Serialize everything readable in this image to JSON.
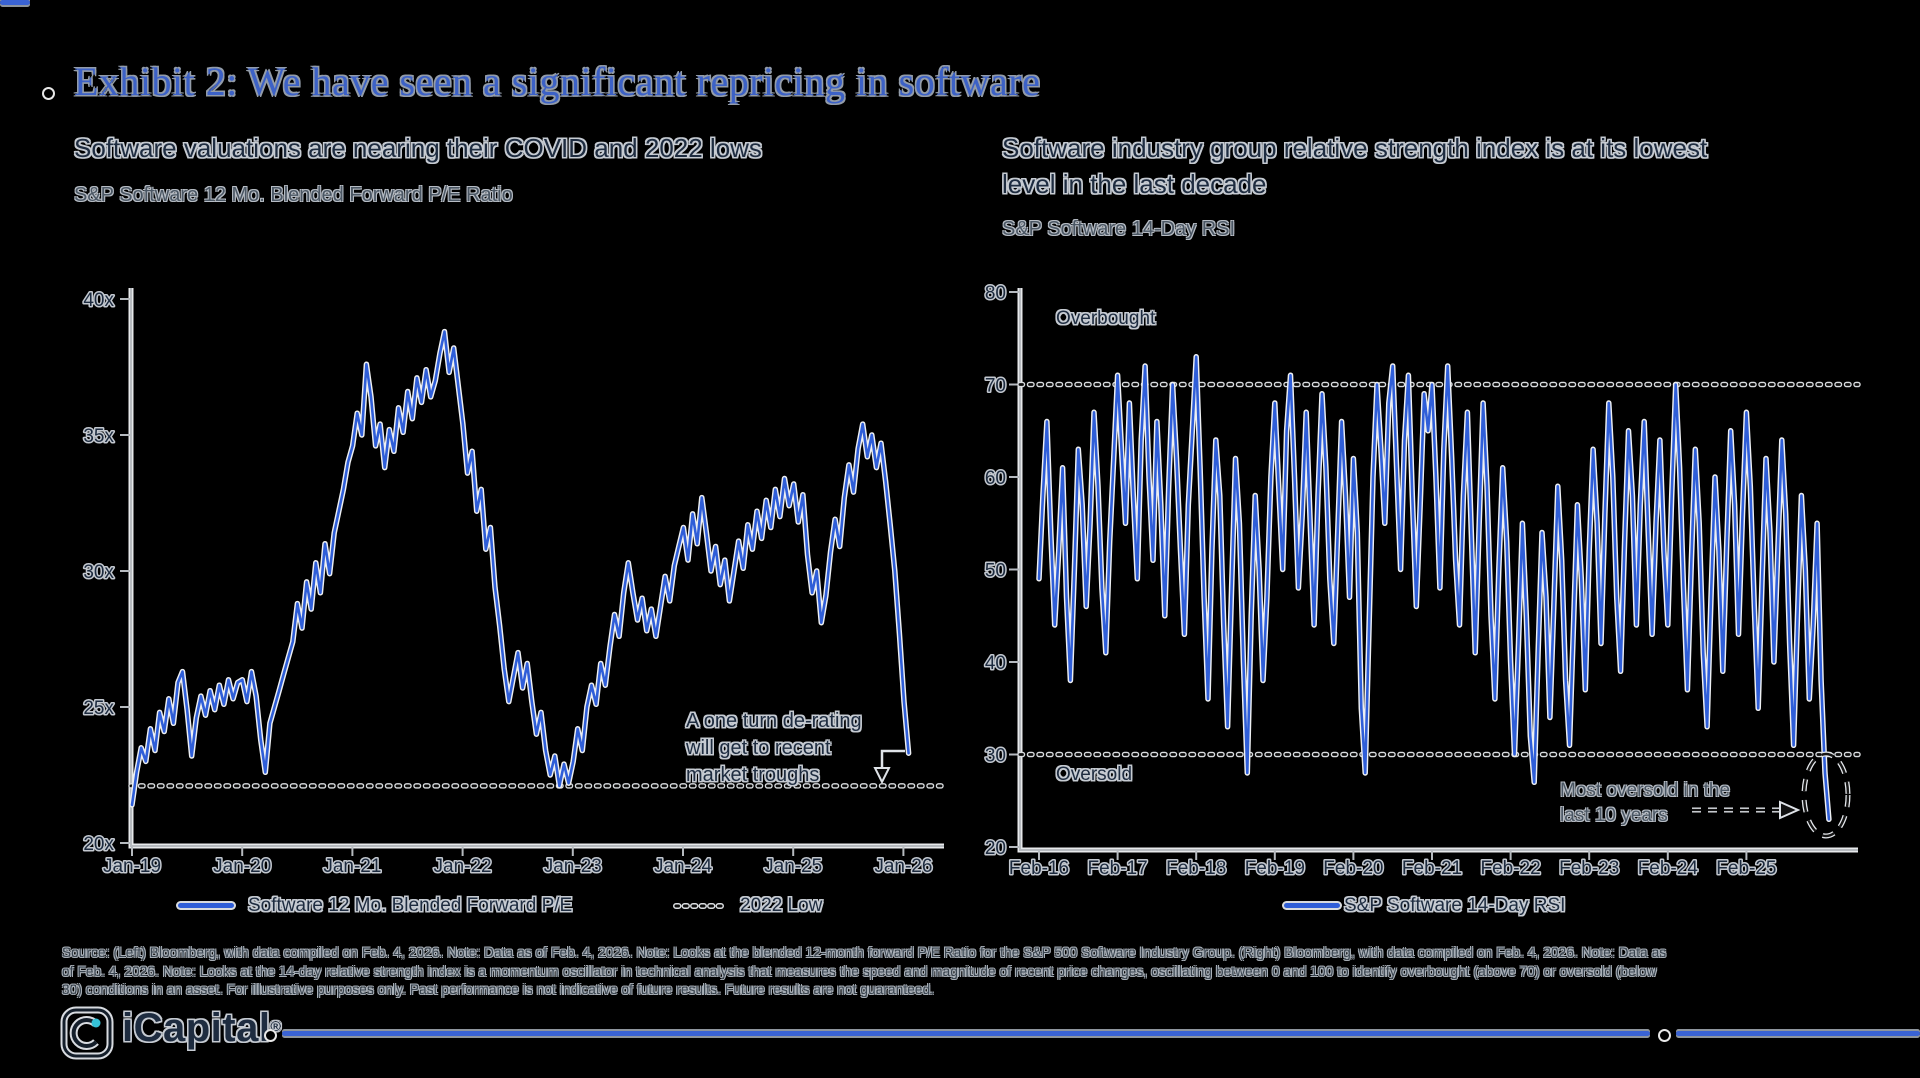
{
  "header": {
    "title": "Exhibit 2: We have seen a significant repricing in software"
  },
  "left_panel": {
    "subtitle": "Software valuations are nearing their COVID and 2022 lows",
    "series_label": "S&P Software 12 Mo. Blended Forward P/E Ratio",
    "annotation": {
      "line1": "A one turn de-rating",
      "line2": "will get to recent",
      "line3": "market troughs"
    },
    "legend": {
      "line_label": "Software 12 Mo. Blended Forward P/E",
      "dotted_label": "2022 Low"
    }
  },
  "right_panel": {
    "subtitle_line1": "Software industry group relative strength index is at its lowest",
    "subtitle_line2": "level in the last decade",
    "series_label": "S&P Software 14-Day RSI",
    "overbought_label": "Overbought",
    "oversold_label": "Oversold",
    "annotation": {
      "line1": "Most oversold in the",
      "line2": "last 10 years"
    },
    "legend": {
      "line_label": "S&P Software 14-Day RSI"
    }
  },
  "footer": {
    "source_lines": [
      "Source: (Left) Bloomberg, with data compiled on Feb. 4, 2026. Note: Data as of Feb. 4, 2026. Note: Looks at the blended 12-month forward P/E Ratio for the S&P 500 Software Industry Group. (Right) Bloomberg, with data compiled on Feb. 4, 2026. Note: Data as",
      "of Feb. 4, 2026. Note: Looks at the 14-day relative strength index is a momentum oscillator in technical analysis that measures the speed and magnitude of recent price changes, oscillating between 0 and 100 to identify overbought (above 70) or oversold (below",
      "30) conditions in an asset. For illustrative purposes only. Past performance is not indicative of future results. Future results are not guaranteed."
    ],
    "logo_text": "iCapital",
    "logo_reg": "®"
  },
  "colors": {
    "background": "#000000",
    "line_blue": "#2f5ed8",
    "title_blue": "#3c61c6",
    "axis_gray": "#b6babf",
    "dotted_dark": "#0a0a0a",
    "halo_light": "#c6cbd2",
    "logo_dot_teal": "#35c2d8"
  },
  "chart_data": [
    {
      "type": "line",
      "name": "pe",
      "title": "Software valuations are nearing their COVID and 2022 lows",
      "subtitle": "S&P Software 12 Mo. Blended Forward P/E Ratio",
      "legend_position": "bottom",
      "grid": false,
      "ylim": [
        20,
        40
      ],
      "ylabel": "",
      "xlabel": "",
      "x_start": 2019.0,
      "x_step": 0.0417,
      "y_ticks": [
        {
          "label": "40x",
          "v": 40
        },
        {
          "label": "35x",
          "v": 35
        },
        {
          "label": "30x",
          "v": 30
        },
        {
          "label": "25x",
          "v": 25
        },
        {
          "label": "20x",
          "v": 20
        }
      ],
      "x_ticks": [
        {
          "label": "Jan-19",
          "t": 2019
        },
        {
          "label": "Jan-20",
          "t": 2020
        },
        {
          "label": "Jan-21",
          "t": 2021
        },
        {
          "label": "Jan-22",
          "t": 2022
        },
        {
          "label": "Jan-23",
          "t": 2023
        },
        {
          "label": "Jan-24",
          "t": 2024
        },
        {
          "label": "Jan-25",
          "t": 2025
        },
        {
          "label": "Jan-26",
          "t": 2026
        }
      ],
      "reference_line": {
        "label": "2022 Low",
        "value": 22.1
      },
      "series": [
        {
          "name": "Software 12 Mo. Blended Forward P/E",
          "values": [
            21.4,
            22.6,
            23.5,
            23.0,
            24.2,
            23.4,
            24.8,
            24.1,
            25.3,
            24.4,
            25.9,
            26.3,
            24.9,
            23.2,
            24.6,
            25.4,
            24.7,
            25.6,
            24.9,
            25.8,
            25.1,
            26.0,
            25.3,
            25.9,
            26.0,
            25.2,
            26.3,
            25.4,
            23.8,
            22.6,
            24.4,
            25.0,
            25.6,
            26.2,
            26.8,
            27.4,
            28.8,
            27.9,
            29.6,
            28.6,
            30.3,
            29.2,
            31.0,
            29.9,
            31.4,
            32.2,
            33.0,
            34.0,
            34.6,
            35.8,
            35.0,
            37.6,
            36.4,
            34.6,
            35.4,
            33.8,
            35.2,
            34.4,
            36.0,
            35.1,
            36.6,
            35.6,
            37.1,
            36.2,
            37.4,
            36.4,
            37.0,
            38.0,
            38.8,
            37.3,
            38.2,
            36.8,
            35.4,
            33.6,
            34.4,
            32.2,
            33.0,
            30.8,
            31.6,
            29.4,
            28.0,
            26.4,
            25.2,
            26.1,
            27.0,
            25.7,
            26.6,
            25.2,
            24.0,
            24.8,
            23.4,
            22.5,
            23.2,
            22.1,
            22.9,
            22.2,
            23.0,
            24.2,
            23.4,
            25.0,
            25.8,
            25.1,
            26.6,
            25.8,
            27.2,
            28.4,
            27.6,
            29.2,
            30.3,
            29.2,
            28.2,
            29.0,
            27.8,
            28.6,
            27.6,
            28.7,
            29.8,
            28.9,
            30.2,
            30.9,
            31.6,
            30.4,
            32.1,
            31.0,
            32.7,
            31.4,
            30.0,
            30.9,
            29.5,
            30.4,
            28.9,
            30.0,
            31.1,
            30.1,
            31.7,
            30.8,
            32.2,
            31.2,
            32.6,
            31.6,
            33.0,
            32.0,
            33.4,
            32.4,
            33.2,
            31.8,
            32.8,
            30.6,
            29.2,
            30.0,
            28.1,
            29.1,
            30.7,
            31.9,
            30.9,
            32.7,
            33.9,
            32.9,
            34.5,
            35.4,
            34.2,
            35.0,
            33.8,
            34.7,
            33.3,
            31.7,
            30.0,
            27.7,
            25.2,
            23.3
          ]
        }
      ]
    },
    {
      "type": "line",
      "name": "rsi",
      "title": "Software industry group relative strength index is at its lowest level in the last decade",
      "subtitle": "S&P Software 14-Day RSI",
      "legend_position": "bottom",
      "grid": false,
      "ylim": [
        20,
        80
      ],
      "ylabel": "",
      "xlabel": "",
      "x_start": 2016.08,
      "x_step": 0.05,
      "y_ticks": [
        {
          "label": "80",
          "v": 80
        },
        {
          "label": "70",
          "v": 70
        },
        {
          "label": "60",
          "v": 60
        },
        {
          "label": "50",
          "v": 50
        },
        {
          "label": "40",
          "v": 40
        },
        {
          "label": "30",
          "v": 30
        },
        {
          "label": "20",
          "v": 20
        }
      ],
      "x_ticks": [
        {
          "label": "Feb-16",
          "t": 2016.08
        },
        {
          "label": "Feb-17",
          "t": 2017.08
        },
        {
          "label": "Feb-18",
          "t": 2018.08
        },
        {
          "label": "Feb-19",
          "t": 2019.08
        },
        {
          "label": "Feb-20",
          "t": 2020.08
        },
        {
          "label": "Feb-21",
          "t": 2021.08
        },
        {
          "label": "Feb-22",
          "t": 2022.08
        },
        {
          "label": "Feb-23",
          "t": 2023.08
        },
        {
          "label": "Feb-24",
          "t": 2024.08
        },
        {
          "label": "Feb-25",
          "t": 2025.08
        }
      ],
      "reference_lines": [
        {
          "label": "Overbought",
          "value": 70
        },
        {
          "label": "Oversold",
          "value": 30
        }
      ],
      "series": [
        {
          "name": "S&P Software 14-Day RSI",
          "values": [
            49,
            58,
            66,
            54,
            44,
            52,
            61,
            47,
            38,
            50,
            63,
            57,
            46,
            55,
            67,
            59,
            48,
            41,
            53,
            62,
            71,
            63,
            55,
            68,
            58,
            49,
            64,
            72,
            60,
            51,
            66,
            57,
            45,
            59,
            70,
            62,
            52,
            43,
            57,
            65,
            73,
            61,
            47,
            36,
            52,
            64,
            58,
            44,
            33,
            48,
            62,
            55,
            40,
            28,
            45,
            58,
            50,
            38,
            47,
            60,
            68,
            59,
            50,
            65,
            71,
            60,
            48,
            56,
            67,
            55,
            44,
            58,
            69,
            61,
            49,
            42,
            54,
            66,
            58,
            47,
            62,
            54,
            35,
            28,
            44,
            60,
            70,
            63,
            55,
            68,
            72,
            61,
            50,
            64,
            71,
            58,
            46,
            57,
            69,
            65,
            70,
            60,
            48,
            63,
            72,
            62,
            51,
            44,
            58,
            67,
            54,
            41,
            55,
            68,
            59,
            45,
            36,
            50,
            61,
            53,
            40,
            30,
            42,
            55,
            45,
            32,
            27,
            41,
            54,
            47,
            34,
            46,
            59,
            51,
            38,
            31,
            44,
            57,
            49,
            37,
            52,
            63,
            55,
            42,
            56,
            68,
            60,
            47,
            39,
            53,
            65,
            58,
            44,
            57,
            66,
            54,
            43,
            55,
            64,
            52,
            44,
            58,
            70,
            61,
            48,
            37,
            51,
            63,
            55,
            41,
            33,
            47,
            60,
            52,
            39,
            53,
            65,
            57,
            43,
            56,
            67,
            59,
            46,
            35,
            49,
            62,
            54,
            40,
            52,
            64,
            56,
            42,
            31,
            45,
            58,
            50,
            36,
            44,
            55,
            38,
            28,
            23
          ]
        }
      ]
    }
  ]
}
